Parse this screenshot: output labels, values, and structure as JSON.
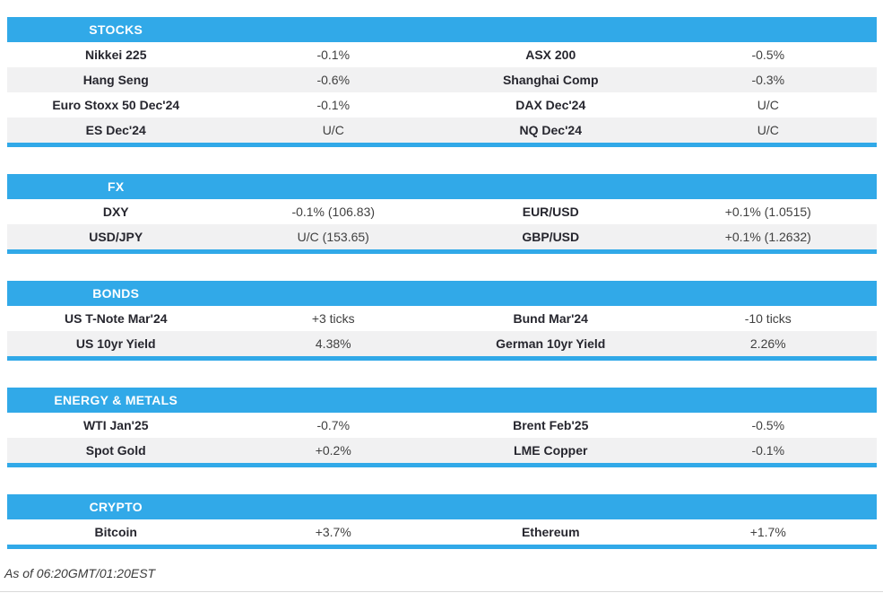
{
  "colors": {
    "accent_blue": "#31A9E8",
    "row_stripe": "#F1F1F2",
    "name_text": "#26262E",
    "value_text": "#404040"
  },
  "sections": [
    {
      "title": "STOCKS",
      "rows": [
        [
          "Nikkei 225",
          "-0.1%",
          "ASX 200",
          "-0.5%"
        ],
        [
          "Hang Seng",
          "-0.6%",
          "Shanghai Comp",
          "-0.3%"
        ],
        [
          "Euro Stoxx 50 Dec'24",
          "-0.1%",
          "DAX Dec'24",
          "U/C"
        ],
        [
          "ES Dec'24",
          "U/C",
          "NQ Dec'24",
          "U/C"
        ]
      ]
    },
    {
      "title": "FX",
      "rows": [
        [
          "DXY",
          "-0.1% (106.83)",
          "EUR/USD",
          "+0.1% (1.0515)"
        ],
        [
          "USD/JPY",
          "U/C (153.65)",
          "GBP/USD",
          "+0.1% (1.2632)"
        ]
      ]
    },
    {
      "title": "BONDS",
      "rows": [
        [
          "US T-Note Mar'24",
          "+3 ticks",
          "Bund Mar'24",
          "-10 ticks"
        ],
        [
          "US 10yr Yield",
          "4.38%",
          "German 10yr Yield",
          "2.26%"
        ]
      ]
    },
    {
      "title": "ENERGY & METALS",
      "rows": [
        [
          "WTI Jan'25",
          "-0.7%",
          "Brent Feb'25",
          "-0.5%"
        ],
        [
          "Spot Gold",
          "+0.2%",
          "LME Copper",
          "-0.1%"
        ]
      ]
    },
    {
      "title": "CRYPTO",
      "rows": [
        [
          "Bitcoin",
          "+3.7%",
          "Ethereum",
          "+1.7%"
        ]
      ]
    }
  ],
  "footer": {
    "as_of": "As of 06:20GMT/01:20EST"
  }
}
